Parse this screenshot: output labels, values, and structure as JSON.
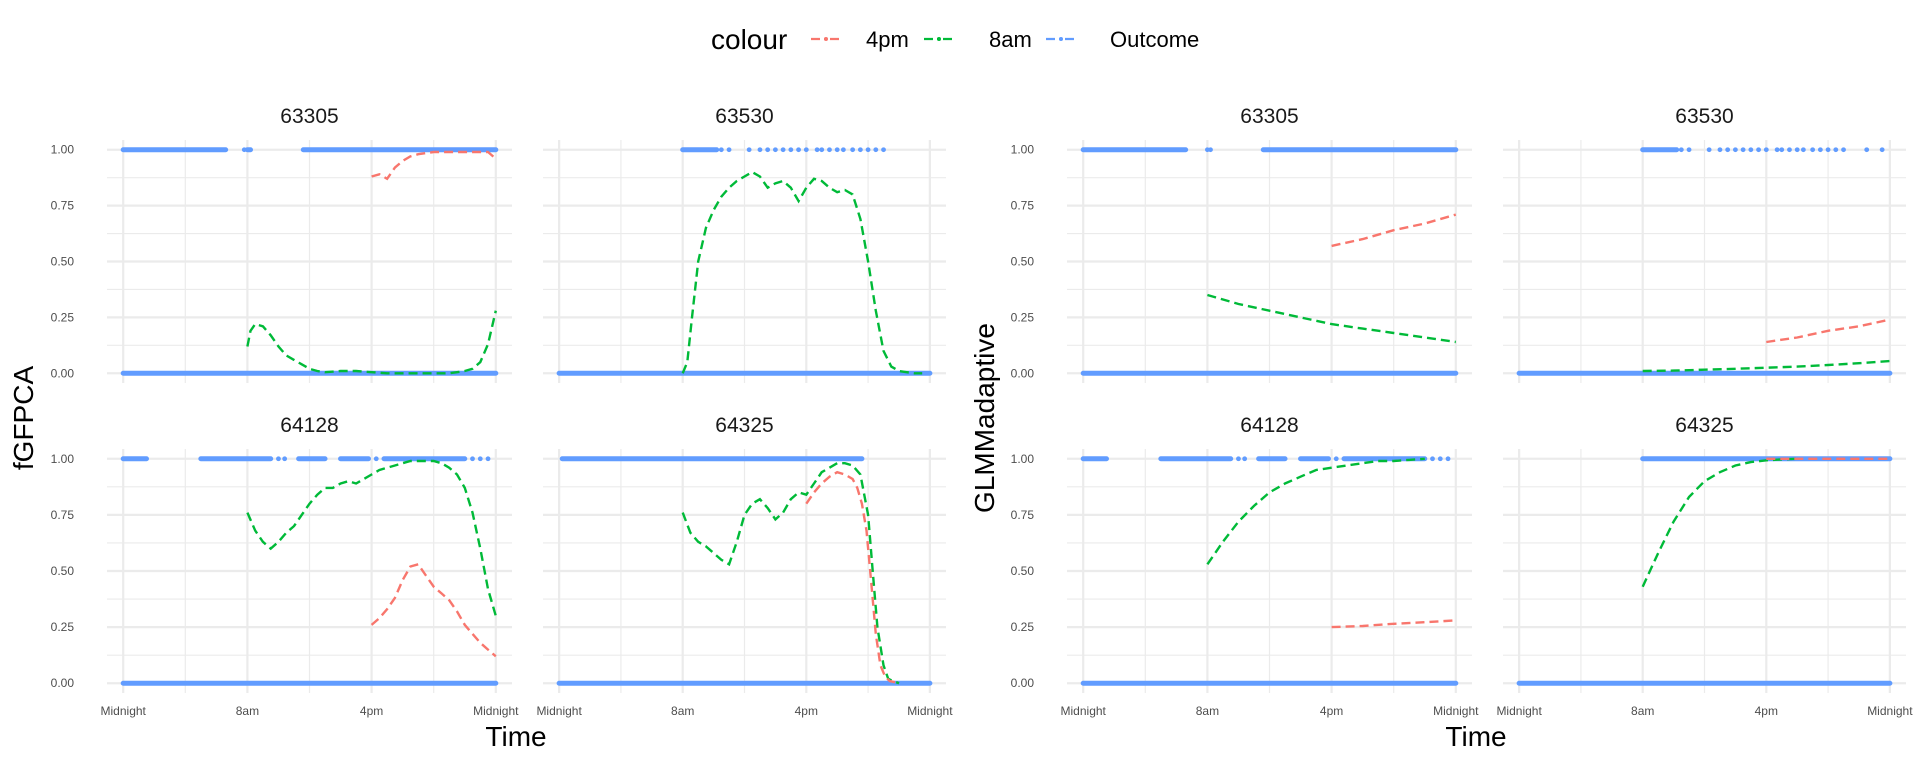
{
  "legend": {
    "title": "colour",
    "entries": [
      {
        "label": "4pm",
        "color": "#F8766D"
      },
      {
        "label": "8am",
        "color": "#00BA38"
      },
      {
        "label": "Outcome",
        "color": "#619CFF"
      }
    ]
  },
  "x_tick_labels": [
    "Midnight",
    "8am",
    "4pm",
    "Midnight"
  ],
  "y_tick_labels": [
    "0.00",
    "0.25",
    "0.50",
    "0.75",
    "1.00"
  ],
  "chart_data": [
    {
      "type": "line",
      "ylabel": "fGFPCA",
      "xlabel": "Time",
      "xlim": [
        0,
        24
      ],
      "ylim": [
        0,
        1
      ],
      "panels": [
        {
          "id": "63305",
          "outcome_one": [
            [
              0,
              6.6
            ],
            [
              8,
              8.2
            ],
            [
              11.6,
              24
            ]
          ],
          "outcome_one_pts": [
            7.8
          ],
          "outcome_zero": [
            [
              0,
              24
            ]
          ],
          "series": [
            {
              "name": "8am",
              "x": [
                8,
                8.2,
                8.5,
                9,
                9.5,
                10,
                10.5,
                11,
                11.5,
                12,
                12.5,
                13,
                14,
                15,
                16,
                17,
                18,
                19,
                20,
                21,
                21.5,
                22,
                22.5,
                23,
                23.5,
                24
              ],
              "y": [
                0.12,
                0.19,
                0.22,
                0.21,
                0.17,
                0.12,
                0.08,
                0.06,
                0.04,
                0.02,
                0.01,
                0.005,
                0.01,
                0.01,
                0.005,
                0,
                0,
                0,
                0,
                0,
                0.005,
                0.01,
                0.02,
                0.05,
                0.13,
                0.28
              ]
            },
            {
              "name": "4pm",
              "x": [
                16,
                16.5,
                17,
                17.5,
                18,
                18.5,
                19,
                20,
                21,
                22,
                23,
                23.5,
                24
              ],
              "y": [
                0.88,
                0.89,
                0.87,
                0.92,
                0.95,
                0.97,
                0.98,
                0.99,
                0.99,
                0.99,
                0.99,
                0.99,
                0.96
              ]
            }
          ]
        },
        {
          "id": "63530",
          "outcome_one": [
            [
              8,
              10.2
            ]
          ],
          "outcome_one_pts": [
            10.5,
            11,
            12.3,
            13,
            13.5,
            14,
            14.5,
            15,
            15.5,
            16,
            16.7,
            17,
            17.5,
            18,
            18.4,
            19,
            19.5,
            20,
            20.5,
            21
          ],
          "outcome_zero": [
            [
              0,
              24
            ]
          ],
          "series": [
            {
              "name": "8am",
              "x": [
                8,
                8.3,
                8.6,
                9,
                9.5,
                10,
                10.5,
                11,
                11.5,
                12,
                12.5,
                13,
                13.5,
                14,
                14.5,
                15,
                15.5,
                16,
                16.5,
                17,
                17.5,
                18,
                18.5,
                19,
                19.5,
                20,
                20.5,
                21,
                21.5,
                22,
                22.5,
                23,
                23.5
              ],
              "y": [
                0,
                0.05,
                0.25,
                0.5,
                0.65,
                0.73,
                0.79,
                0.83,
                0.86,
                0.88,
                0.9,
                0.88,
                0.83,
                0.85,
                0.86,
                0.83,
                0.77,
                0.83,
                0.87,
                0.86,
                0.83,
                0.81,
                0.82,
                0.8,
                0.69,
                0.5,
                0.28,
                0.1,
                0.03,
                0.01,
                0.005,
                0,
                0
              ]
            }
          ]
        },
        {
          "id": "64128",
          "outcome_one": [
            [
              0,
              1.5
            ],
            [
              5,
              9.5
            ],
            [
              11.3,
              13
            ],
            [
              14,
              15.8
            ],
            [
              16.8,
              22
            ]
          ],
          "outcome_one_pts": [
            10,
            10.4,
            16.3,
            22.5,
            23,
            23.5
          ],
          "outcome_zero": [
            [
              0,
              24
            ]
          ],
          "series": [
            {
              "name": "8am",
              "x": [
                8,
                8.5,
                9,
                9.5,
                10,
                10.5,
                11,
                11.5,
                12,
                12.5,
                13,
                13.5,
                14,
                14.5,
                15,
                15.5,
                16,
                16.5,
                17,
                17.5,
                18,
                18.5,
                19,
                19.5,
                20,
                20.5,
                21,
                21.5,
                22,
                22.5,
                23,
                23.5,
                24
              ],
              "y": [
                0.76,
                0.68,
                0.63,
                0.6,
                0.63,
                0.67,
                0.7,
                0.75,
                0.8,
                0.84,
                0.87,
                0.87,
                0.89,
                0.9,
                0.89,
                0.91,
                0.93,
                0.95,
                0.96,
                0.97,
                0.98,
                0.99,
                0.99,
                0.99,
                0.99,
                0.98,
                0.96,
                0.93,
                0.87,
                0.76,
                0.6,
                0.42,
                0.3
              ]
            },
            {
              "name": "4pm",
              "x": [
                16,
                16.5,
                17,
                17.5,
                18,
                18.5,
                19,
                19.5,
                20,
                20.5,
                21,
                21.5,
                22,
                22.5,
                23,
                23.5,
                24
              ],
              "y": [
                0.26,
                0.29,
                0.33,
                0.38,
                0.46,
                0.52,
                0.53,
                0.48,
                0.43,
                0.4,
                0.37,
                0.32,
                0.26,
                0.22,
                0.18,
                0.15,
                0.12
              ]
            }
          ]
        },
        {
          "id": "64325",
          "outcome_one": [
            [
              0.2,
              19.6
            ]
          ],
          "outcome_one_pts": [],
          "outcome_zero": [
            [
              0,
              24
            ]
          ],
          "series": [
            {
              "name": "8am",
              "x": [
                8,
                8.5,
                9,
                9.5,
                10,
                10.5,
                11,
                11.5,
                12,
                12.5,
                13,
                13.5,
                14,
                14.5,
                15,
                15.5,
                16,
                16.5,
                17,
                17.5,
                18,
                18.5,
                19,
                19.5,
                20,
                20.3,
                20.6,
                21,
                21.3,
                21.6,
                22
              ],
              "y": [
                0.76,
                0.67,
                0.63,
                0.61,
                0.58,
                0.55,
                0.53,
                0.63,
                0.75,
                0.8,
                0.82,
                0.78,
                0.73,
                0.76,
                0.82,
                0.85,
                0.84,
                0.89,
                0.94,
                0.96,
                0.98,
                0.98,
                0.97,
                0.93,
                0.75,
                0.5,
                0.25,
                0.08,
                0.02,
                0.01,
                0
              ]
            },
            {
              "name": "4pm",
              "x": [
                16,
                16.5,
                17,
                17.5,
                18,
                18.5,
                19,
                19.3,
                19.6,
                19.9,
                20.2,
                20.5,
                20.8,
                21.1,
                21.4,
                21.7,
                22
              ],
              "y": [
                0.8,
                0.85,
                0.89,
                0.92,
                0.94,
                0.93,
                0.91,
                0.87,
                0.8,
                0.68,
                0.45,
                0.22,
                0.08,
                0.03,
                0.01,
                0.005,
                0
              ]
            }
          ]
        }
      ]
    },
    {
      "type": "line",
      "ylabel": "GLMMadaptive",
      "xlabel": "Time",
      "xlim": [
        0,
        24
      ],
      "ylim": [
        0,
        1
      ],
      "panels": [
        {
          "id": "63305",
          "outcome_one": [
            [
              0,
              6.6
            ],
            [
              11.6,
              24
            ]
          ],
          "outcome_one_pts": [
            8,
            8.2
          ],
          "outcome_zero": [
            [
              0,
              24
            ]
          ],
          "series": [
            {
              "name": "8am",
              "x": [
                8,
                10,
                12,
                14,
                16,
                18,
                20,
                22,
                24
              ],
              "y": [
                0.35,
                0.31,
                0.28,
                0.25,
                0.22,
                0.2,
                0.18,
                0.16,
                0.14
              ]
            },
            {
              "name": "4pm",
              "x": [
                16,
                18,
                20,
                22,
                24
              ],
              "y": [
                0.57,
                0.6,
                0.64,
                0.67,
                0.71
              ]
            }
          ]
        },
        {
          "id": "63530",
          "outcome_one": [
            [
              8,
              10.2
            ]
          ],
          "outcome_one_pts": [
            10.5,
            11,
            12.3,
            13,
            13.5,
            14,
            14.5,
            15,
            15.5,
            16,
            16.7,
            17,
            17.5,
            18,
            18.4,
            19,
            19.5,
            20,
            20.5,
            21,
            22.5,
            23.5
          ],
          "outcome_zero": [
            [
              0,
              24
            ]
          ],
          "series": [
            {
              "name": "8am",
              "x": [
                8,
                10,
                12,
                14,
                16,
                18,
                20,
                22,
                24
              ],
              "y": [
                0.01,
                0.012,
                0.016,
                0.02,
                0.025,
                0.03,
                0.037,
                0.045,
                0.055
              ]
            },
            {
              "name": "4pm",
              "x": [
                16,
                18,
                20,
                22,
                24
              ],
              "y": [
                0.14,
                0.16,
                0.19,
                0.21,
                0.24
              ]
            }
          ]
        },
        {
          "id": "64128",
          "outcome_one": [
            [
              0,
              1.5
            ],
            [
              5,
              9.5
            ],
            [
              11.3,
              13
            ],
            [
              14,
              15.8
            ],
            [
              16.8,
              22
            ]
          ],
          "outcome_one_pts": [
            10,
            10.4,
            16.3,
            22.5,
            23,
            23.5
          ],
          "outcome_zero": [
            [
              0,
              24
            ]
          ],
          "series": [
            {
              "name": "8am",
              "x": [
                8,
                9,
                10,
                11,
                12,
                13,
                14,
                15,
                16,
                17,
                18,
                19,
                20,
                21,
                22
              ],
              "y": [
                0.53,
                0.63,
                0.72,
                0.79,
                0.85,
                0.89,
                0.92,
                0.95,
                0.96,
                0.97,
                0.98,
                0.99,
                0.99,
                0.995,
                1.0
              ]
            },
            {
              "name": "4pm",
              "x": [
                16,
                18,
                20,
                22,
                24
              ],
              "y": [
                0.25,
                0.255,
                0.265,
                0.272,
                0.28
              ]
            }
          ]
        },
        {
          "id": "64325",
          "outcome_one": [
            [
              8,
              24
            ]
          ],
          "outcome_one_pts": [],
          "outcome_zero": [
            [
              0,
              24
            ]
          ],
          "series": [
            {
              "name": "8am",
              "x": [
                8,
                9,
                10,
                11,
                12,
                13,
                14,
                15,
                16,
                17,
                18
              ],
              "y": [
                0.43,
                0.58,
                0.72,
                0.83,
                0.9,
                0.94,
                0.97,
                0.985,
                0.993,
                0.997,
                1.0
              ]
            },
            {
              "name": "4pm",
              "x": [
                16,
                18,
                20,
                22,
                24
              ],
              "y": [
                1.0,
                1.0,
                1.0,
                1.0,
                1.0
              ]
            }
          ]
        }
      ]
    }
  ]
}
